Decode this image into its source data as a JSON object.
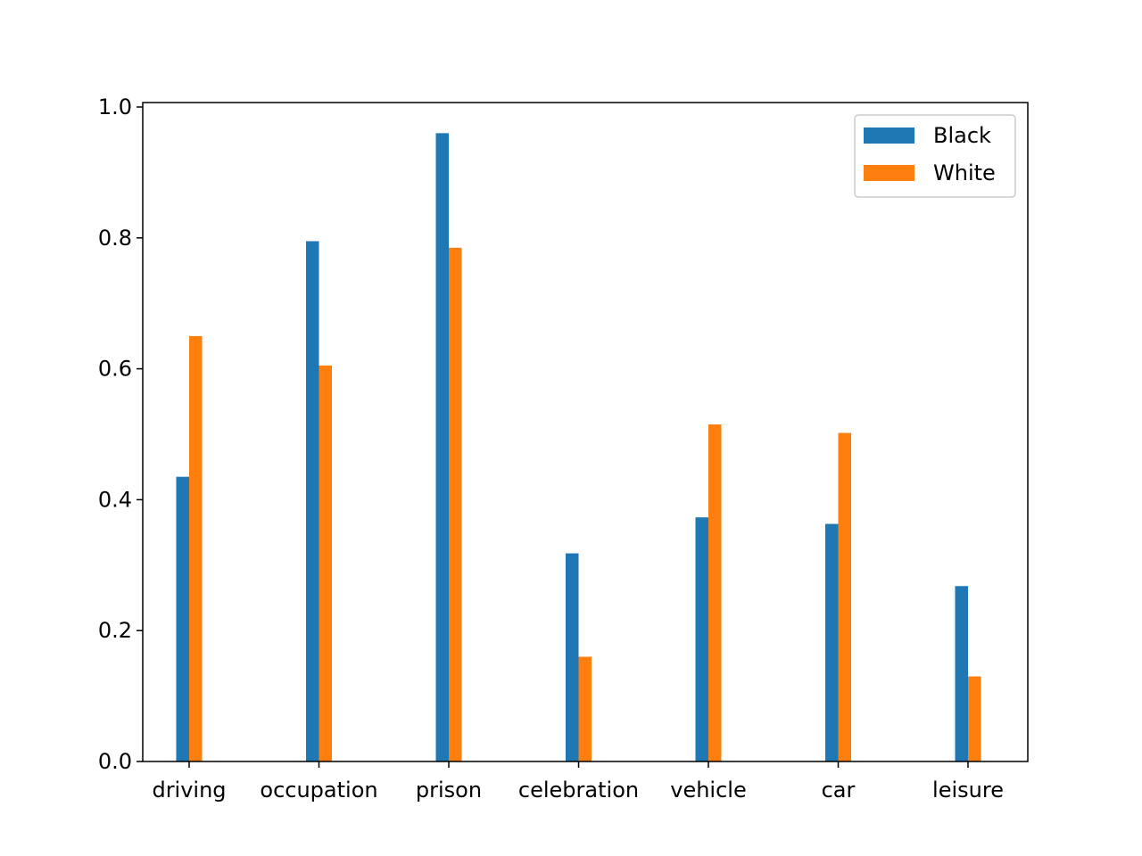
{
  "chart_data": {
    "type": "bar",
    "title": "",
    "xlabel": "",
    "ylabel": "",
    "categories": [
      "driving",
      "occupation",
      "prison",
      "celebration",
      "vehicle",
      "car",
      "leisure"
    ],
    "series": [
      {
        "name": "Black",
        "color": "#1f77b4",
        "values": [
          0.435,
          0.795,
          0.96,
          0.318,
          0.373,
          0.363,
          0.268
        ]
      },
      {
        "name": "White",
        "color": "#ff7f0e",
        "values": [
          0.65,
          0.605,
          0.785,
          0.16,
          0.515,
          0.502,
          0.13
        ]
      }
    ],
    "ylim": [
      0,
      1.0
    ],
    "yticks": [
      0.0,
      0.2,
      0.4,
      0.6,
      0.8,
      1.0
    ],
    "ytick_labels": [
      "0.0",
      "0.2",
      "0.4",
      "0.6",
      "0.8",
      "1.0"
    ],
    "grid": false,
    "legend_position": "top-right"
  }
}
